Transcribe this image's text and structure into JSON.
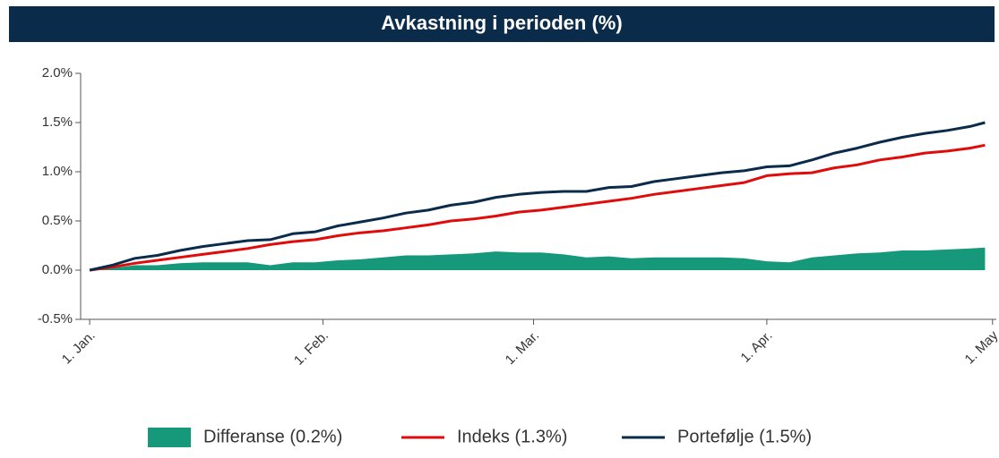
{
  "chart_data": {
    "type": "line",
    "title": "Avkastning i perioden (%)",
    "x": [
      0,
      3,
      6,
      9,
      12,
      15,
      18,
      21,
      24,
      27,
      30,
      33,
      36,
      39,
      42,
      45,
      48,
      51,
      54,
      57,
      60,
      63,
      66,
      69,
      72,
      75,
      78,
      81,
      84,
      87,
      90,
      93,
      96,
      99,
      102,
      105,
      108,
      111,
      114,
      117,
      119
    ],
    "series": [
      {
        "name": "Differanse (0.2%)",
        "style": "area",
        "color": "#16997a",
        "values": [
          0,
          0.02,
          0.05,
          0.05,
          0.07,
          0.08,
          0.08,
          0.08,
          0.05,
          0.08,
          0.08,
          0.1,
          0.11,
          0.13,
          0.15,
          0.15,
          0.16,
          0.17,
          0.19,
          0.18,
          0.18,
          0.16,
          0.13,
          0.14,
          0.12,
          0.13,
          0.13,
          0.13,
          0.13,
          0.12,
          0.09,
          0.08,
          0.13,
          0.15,
          0.17,
          0.18,
          0.2,
          0.2,
          0.21,
          0.22,
          0.23
        ]
      },
      {
        "name": "Indeks (1.3%)",
        "style": "line",
        "color": "#e00b0b",
        "values": [
          0,
          0.03,
          0.07,
          0.1,
          0.13,
          0.16,
          0.19,
          0.22,
          0.26,
          0.29,
          0.31,
          0.35,
          0.38,
          0.4,
          0.43,
          0.46,
          0.5,
          0.52,
          0.55,
          0.59,
          0.61,
          0.64,
          0.67,
          0.7,
          0.73,
          0.77,
          0.8,
          0.83,
          0.86,
          0.89,
          0.96,
          0.98,
          0.99,
          1.04,
          1.07,
          1.12,
          1.15,
          1.19,
          1.21,
          1.24,
          1.27
        ]
      },
      {
        "name": "Portefølje (1.5%)",
        "style": "line",
        "color": "#0b2b4b",
        "values": [
          0,
          0.05,
          0.12,
          0.15,
          0.2,
          0.24,
          0.27,
          0.3,
          0.31,
          0.37,
          0.39,
          0.45,
          0.49,
          0.53,
          0.58,
          0.61,
          0.66,
          0.69,
          0.74,
          0.77,
          0.79,
          0.8,
          0.8,
          0.84,
          0.85,
          0.9,
          0.93,
          0.96,
          0.99,
          1.01,
          1.05,
          1.06,
          1.12,
          1.19,
          1.24,
          1.3,
          1.35,
          1.39,
          1.42,
          1.46,
          1.5
        ]
      }
    ],
    "xlim": [
      -1.2,
      120.5
    ],
    "xticks": [
      {
        "value": 0,
        "label": "1. Jan."
      },
      {
        "value": 31,
        "label": "1. Feb."
      },
      {
        "value": 59,
        "label": "1. Mar."
      },
      {
        "value": 90,
        "label": "1. Apr."
      },
      {
        "value": 120,
        "label": "1. May"
      }
    ],
    "ylim": [
      -0.5,
      2.0
    ],
    "yticks": [
      {
        "value": -0.5,
        "label": "-0.5%"
      },
      {
        "value": 0,
        "label": "0.0%"
      },
      {
        "value": 0.5,
        "label": "0.5%"
      },
      {
        "value": 1.0,
        "label": "1.0%"
      },
      {
        "value": 1.5,
        "label": "1.5%"
      },
      {
        "value": 2.0,
        "label": "2.0%"
      }
    ],
    "legend": "bottom"
  }
}
